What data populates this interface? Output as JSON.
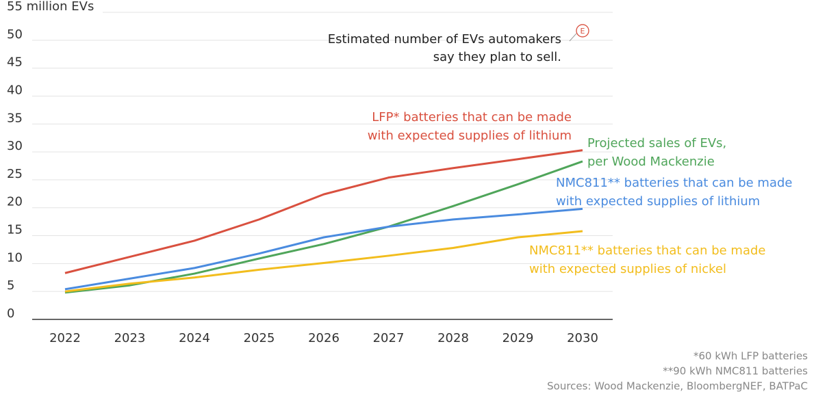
{
  "chart_data": {
    "type": "line",
    "x": [
      2022,
      2023,
      2024,
      2025,
      2026,
      2027,
      2028,
      2029,
      2030
    ],
    "xlim": [
      2022,
      2030
    ],
    "ylim": [
      0,
      55
    ],
    "yticks": [
      0,
      5,
      10,
      15,
      20,
      25,
      30,
      35,
      40,
      45,
      {
        "value": 50,
        "label": "50"
      },
      {
        "value": 55,
        "label": "55 million EVs"
      }
    ],
    "grid": true,
    "series": [
      {
        "name": [
          "LFP* batteries that can be made",
          "with expected supplies of lithium"
        ],
        "color": "#d9503f",
        "values": [
          8.3,
          11.2,
          14.1,
          17.9,
          22.4,
          25.4,
          27.1,
          28.7,
          30.3
        ]
      },
      {
        "name": [
          "Projected sales of EVs,",
          "per Wood Mackenzie"
        ],
        "color": "#4fa55a",
        "values": [
          4.8,
          6.1,
          8.2,
          10.9,
          13.5,
          16.6,
          20.3,
          24.2,
          28.3
        ]
      },
      {
        "name": [
          "NMC811** batteries that can be made",
          "with expected supplies of lithium"
        ],
        "color": "#4a8bdf",
        "values": [
          5.4,
          7.3,
          9.2,
          11.8,
          14.7,
          16.6,
          17.9,
          18.8,
          19.8
        ]
      },
      {
        "name": [
          "NMC811** batteries that can be made",
          "with expected supplies of nickel"
        ],
        "color": "#f2bd1d",
        "values": [
          5.0,
          6.4,
          7.5,
          8.9,
          10.1,
          11.4,
          12.8,
          14.7,
          15.8
        ]
      }
    ],
    "estimate": {
      "label": "E",
      "x": 2030,
      "value": 51.7,
      "text": [
        "Estimated number of EVs automakers",
        "say they plan to sell."
      ]
    },
    "notes": [
      "*60 kWh LFP batteries",
      "**90 kWh NMC811 batteries",
      "Sources: Wood Mackenzie, BloombergNEF, BATPaC"
    ]
  }
}
